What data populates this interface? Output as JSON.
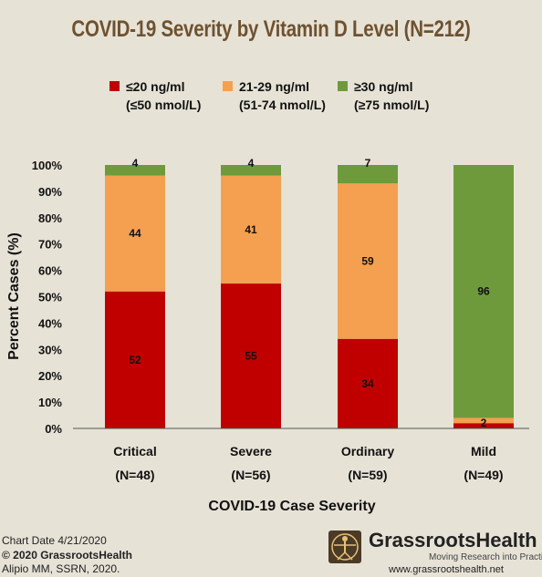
{
  "colors": {
    "low": "#c00000",
    "mid": "#f5a050",
    "high": "#6e9a3c",
    "title": "#6e5230"
  },
  "legend": [
    {
      "label": "≤20 ng/ml",
      "sub": "(≤50 nmol/L)"
    },
    {
      "label": "21-29 ng/ml",
      "sub": "(51-74 nmol/L)"
    },
    {
      "label": "≥30 ng/ml",
      "sub": "(≥75 nmol/L)"
    }
  ],
  "chart_data": {
    "type": "bar",
    "stacked": true,
    "title": "COVID-19 Severity by Vitamin D Level (N=212)",
    "xlabel": "COVID-19 Case Severity",
    "ylabel": "Percent Cases (%)",
    "ylim": [
      0,
      100
    ],
    "yticks": [
      "0%",
      "10%",
      "20%",
      "30%",
      "40%",
      "50%",
      "60%",
      "70%",
      "80%",
      "90%",
      "100%"
    ],
    "categories": [
      "Critical",
      "Severe",
      "Ordinary",
      "Mild"
    ],
    "category_n": [
      "(N=48)",
      "(N=56)",
      "(N=59)",
      "(N=49)"
    ],
    "series": [
      {
        "name": "≤20 ng/ml",
        "values": [
          52,
          55,
          34,
          2
        ],
        "labels": [
          "52",
          "55",
          "34",
          "2"
        ]
      },
      {
        "name": "21-29 ng/ml",
        "values": [
          44,
          41,
          59,
          2
        ],
        "labels": [
          "44",
          "41",
          "59",
          ""
        ]
      },
      {
        "name": "≥30 ng/ml",
        "values": [
          4,
          4,
          7,
          96
        ],
        "labels": [
          "4",
          "4",
          "7",
          "96"
        ]
      }
    ],
    "legend_position": "top"
  },
  "footer": {
    "chart_date": "Chart Date 4/21/2020",
    "copyright": "© 2020 GrassrootsHealth",
    "source": "Alipio MM, SSRN, 2020."
  },
  "logo": {
    "name": "GrassrootsHealth",
    "tagline": "Moving Research into Practice",
    "url": "www.grassrootshealth.net"
  }
}
